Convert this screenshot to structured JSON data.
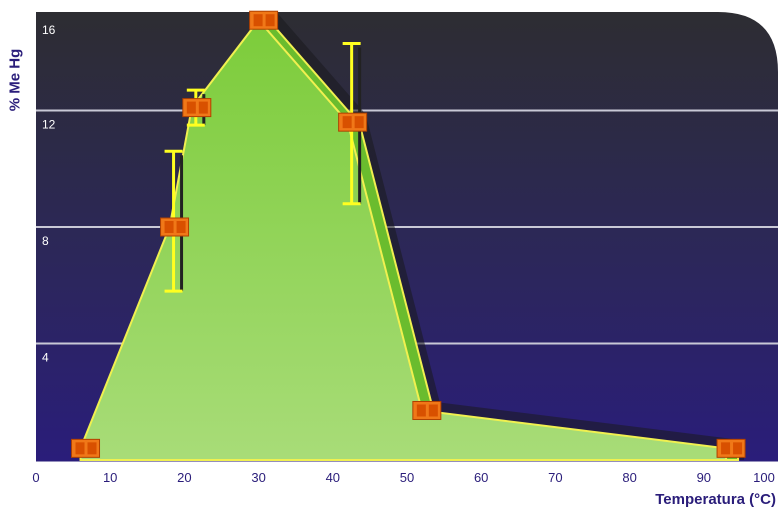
{
  "chart_data": {
    "type": "area",
    "xlabel": "Temperatura (°C)",
    "ylabel": "% Me Hg",
    "xlim": [
      0,
      100
    ],
    "ylim": [
      0,
      16
    ],
    "xticks": [
      0,
      10,
      20,
      30,
      40,
      50,
      60,
      70,
      80,
      90,
      100
    ],
    "xtick_labels": [
      "0",
      "10",
      "20",
      "30",
      "40",
      "50",
      "60",
      "70",
      "80",
      "90",
      "100"
    ],
    "yticks": [
      4,
      8,
      12,
      16
    ],
    "ytick_labels": [
      "4",
      "8",
      "12",
      "16"
    ],
    "grid": "horizontal",
    "series": [
      {
        "x": [
          6,
          18,
          21,
          30,
          42,
          52,
          93
        ],
        "y": [
          0.4,
          8.0,
          12.1,
          15.1,
          11.6,
          1.7,
          0.4
        ],
        "error_low": [
          null,
          5.8,
          11.5,
          null,
          8.8,
          null,
          null
        ],
        "error_high": [
          null,
          10.6,
          12.7,
          null,
          14.3,
          null,
          null
        ]
      }
    ],
    "colors": {
      "area_fill": "#8fd154",
      "area_edge": "#f0f050",
      "marker": "#f07818",
      "marker_face": "#d85000",
      "error_bar": "#ffff20",
      "bg_top": "#2d2d32",
      "bg_bottom": "#2a1d7a"
    }
  }
}
